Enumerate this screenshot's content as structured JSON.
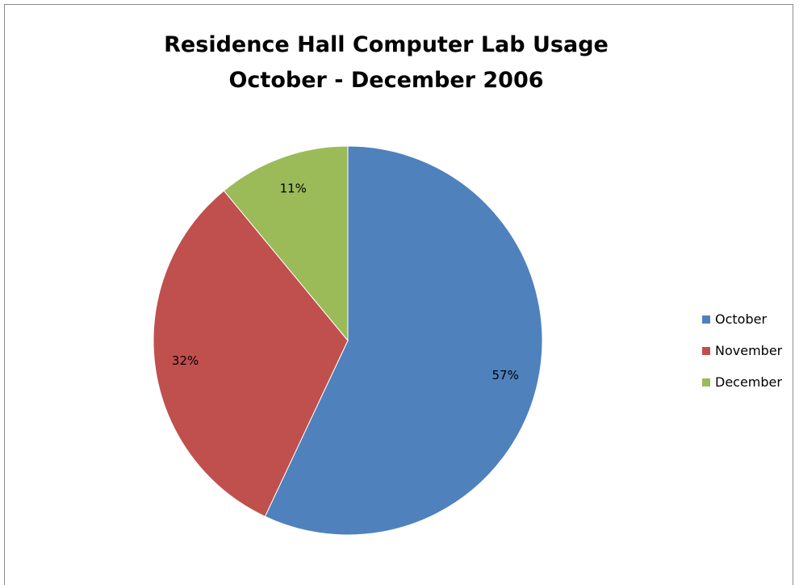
{
  "chart_data": {
    "type": "pie",
    "title_lines": [
      "Residence Hall Computer Lab Usage",
      "October - December 2006"
    ],
    "categories": [
      "October",
      "November",
      "December"
    ],
    "values": [
      57,
      32,
      11
    ],
    "labels": [
      "57%",
      "32%",
      "11%"
    ],
    "colors": [
      "#4f81bd",
      "#c0504d",
      "#9bbb59"
    ],
    "legend_position": "right"
  }
}
